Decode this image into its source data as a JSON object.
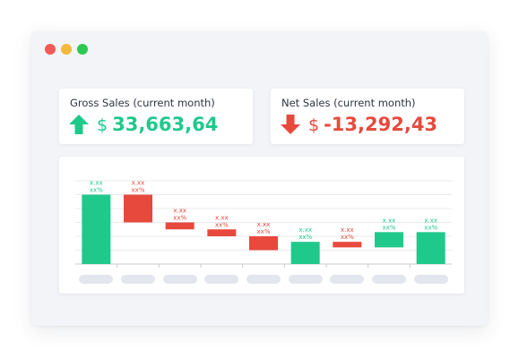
{
  "window": {
    "controls": [
      {
        "name": "close",
        "color": "#f25a55"
      },
      {
        "name": "minimize",
        "color": "#f4b93b"
      },
      {
        "name": "maximize",
        "color": "#2ec950"
      }
    ]
  },
  "cards": {
    "gross": {
      "title": "Gross Sales (current month)",
      "icon": "arrow-up-icon",
      "currency": "$",
      "value": "33,663,64",
      "color": "#1fc98c"
    },
    "net": {
      "title": "Net Sales (current month)",
      "icon": "arrow-down-icon",
      "currency": "$",
      "value": "-13,292,43",
      "color": "#e8493d"
    }
  },
  "chart_data": {
    "type": "bar",
    "subtype": "waterfall",
    "categories": [
      "",
      "",
      "",
      "",
      "",
      "",
      "",
      "",
      ""
    ],
    "bars": [
      {
        "start": 0,
        "end": 5,
        "direction": "up",
        "label_value": "x.xx",
        "label_pct": "xx%"
      },
      {
        "start": 5,
        "end": 3,
        "direction": "down",
        "label_value": "x.xx",
        "label_pct": "xx%"
      },
      {
        "start": 3,
        "end": 2.5,
        "direction": "down",
        "label_value": "x.xx",
        "label_pct": "xx%"
      },
      {
        "start": 2.5,
        "end": 2,
        "direction": "down",
        "label_value": "x.xx",
        "label_pct": "xx%"
      },
      {
        "start": 2,
        "end": 1,
        "direction": "down",
        "label_value": "x.xx",
        "label_pct": "xx%"
      },
      {
        "start": 0,
        "end": 1.6,
        "direction": "up",
        "label_value": "x.xx",
        "label_pct": "xx%"
      },
      {
        "start": 1.6,
        "end": 1.2,
        "direction": "down",
        "label_value": "x.xx",
        "label_pct": "xx%"
      },
      {
        "start": 1.2,
        "end": 2.3,
        "direction": "up",
        "label_value": "x.xx",
        "label_pct": "xx%"
      },
      {
        "start": 0,
        "end": 2.3,
        "direction": "up",
        "label_value": "x.xx",
        "label_pct": "xx%"
      }
    ],
    "ylim": [
      0,
      6
    ],
    "grid": true,
    "colors": {
      "up": "#1fc98c",
      "down": "#e8493d"
    }
  }
}
